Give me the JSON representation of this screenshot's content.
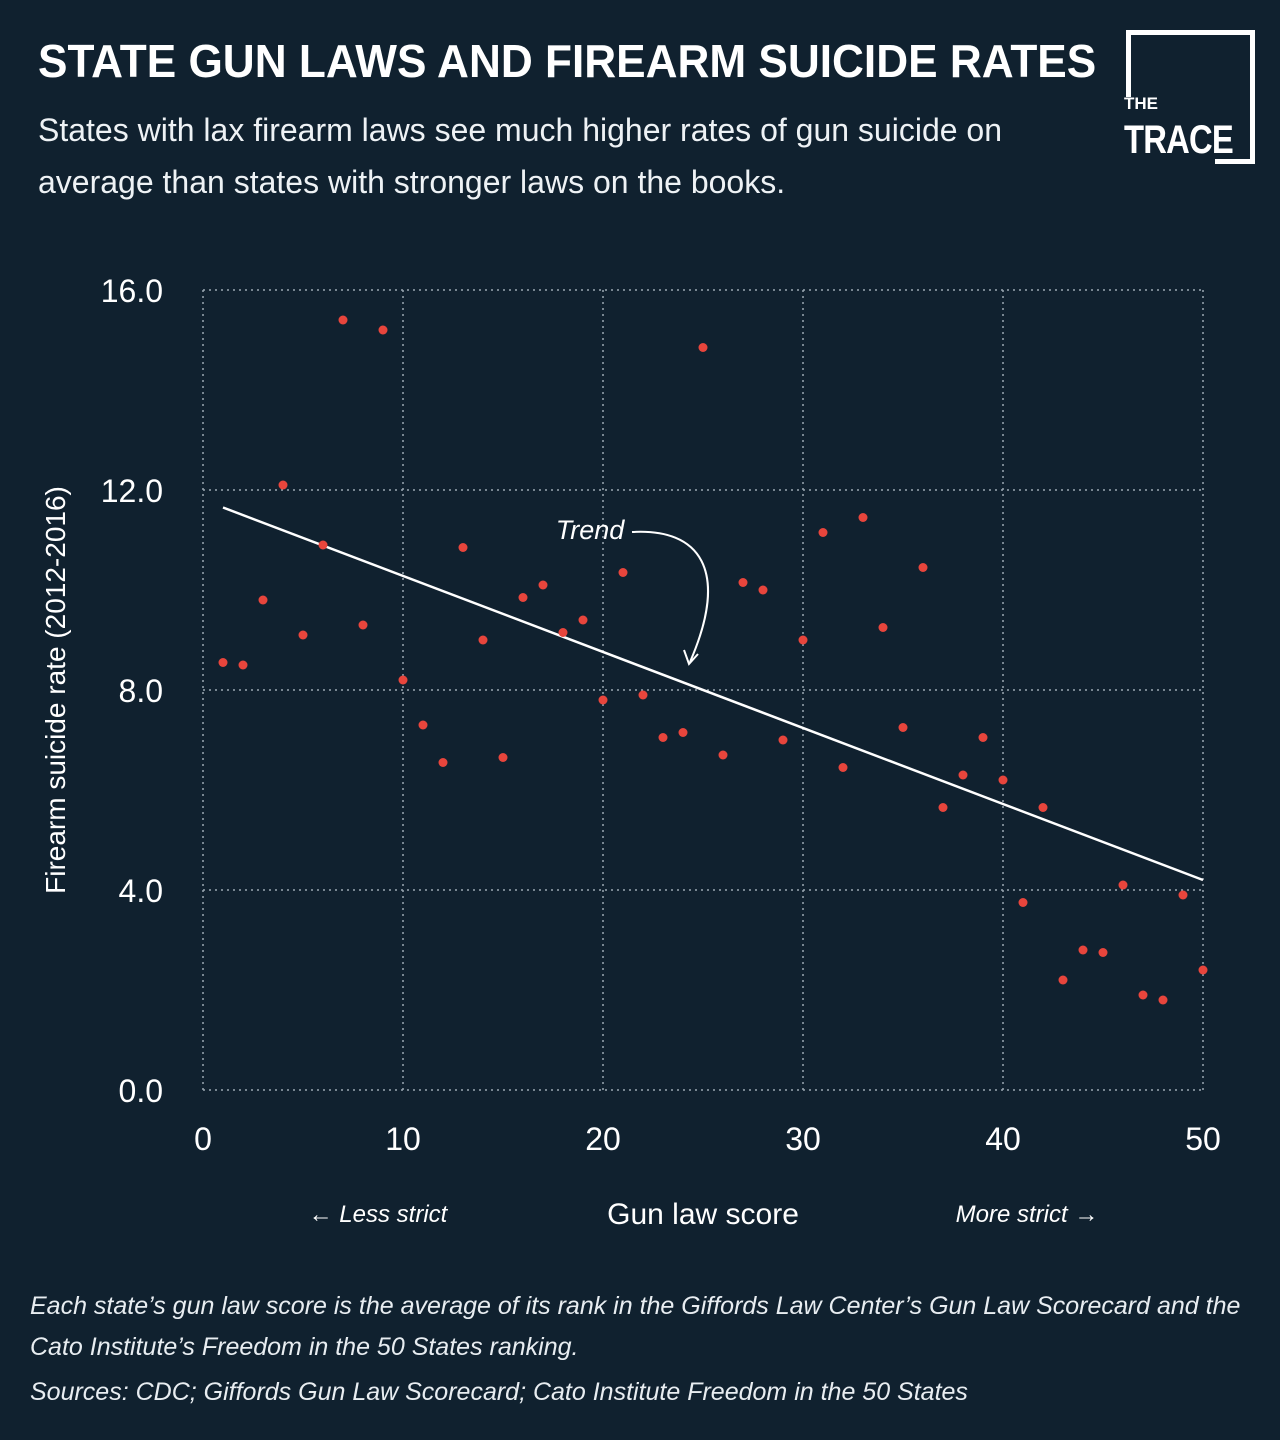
{
  "header": {
    "title": "STATE GUN LAWS AND FIREARM SUICIDE RATES",
    "subtitle": "States with lax firearm laws see much higher rates of gun suicide on average than states with stronger laws on the books."
  },
  "logo": {
    "line1": "THE",
    "line2": "TRACE"
  },
  "chart_data": {
    "type": "scatter",
    "xlabel": "Gun law score",
    "ylabel": "Firearm suicide rate (2012-2016)",
    "xlim": [
      0,
      50
    ],
    "ylim": [
      0,
      16
    ],
    "x_ticks": [
      "0",
      "10",
      "20",
      "30",
      "40",
      "50"
    ],
    "y_ticks": [
      "0.0",
      "4.0",
      "8.0",
      "12.0",
      "16.0"
    ],
    "grid": true,
    "direction_labels": {
      "left": "← Less strict",
      "right": "More strict →"
    },
    "annotation": "Trend",
    "trend_line": {
      "x": [
        1,
        50
      ],
      "y": [
        11.65,
        4.2
      ]
    },
    "point_color": "#e8453c",
    "line_color": "#ffffff",
    "points": [
      {
        "x": 1,
        "y": 8.55
      },
      {
        "x": 2,
        "y": 8.5
      },
      {
        "x": 3,
        "y": 9.8
      },
      {
        "x": 4,
        "y": 12.1
      },
      {
        "x": 5,
        "y": 9.1
      },
      {
        "x": 6,
        "y": 10.9
      },
      {
        "x": 7,
        "y": 15.4
      },
      {
        "x": 8,
        "y": 9.3
      },
      {
        "x": 9,
        "y": 15.2
      },
      {
        "x": 10,
        "y": 8.2
      },
      {
        "x": 11,
        "y": 7.3
      },
      {
        "x": 12,
        "y": 6.55
      },
      {
        "x": 13,
        "y": 10.85
      },
      {
        "x": 14,
        "y": 9.0
      },
      {
        "x": 15,
        "y": 6.65
      },
      {
        "x": 16,
        "y": 9.85
      },
      {
        "x": 17,
        "y": 10.1
      },
      {
        "x": 18,
        "y": 9.15
      },
      {
        "x": 19,
        "y": 9.4
      },
      {
        "x": 20,
        "y": 7.8
      },
      {
        "x": 21,
        "y": 10.35
      },
      {
        "x": 22,
        "y": 7.9
      },
      {
        "x": 23,
        "y": 7.05
      },
      {
        "x": 24,
        "y": 7.15
      },
      {
        "x": 25,
        "y": 14.85
      },
      {
        "x": 26,
        "y": 6.7
      },
      {
        "x": 27,
        "y": 10.15
      },
      {
        "x": 28,
        "y": 10.0
      },
      {
        "x": 29,
        "y": 7.0
      },
      {
        "x": 30,
        "y": 9.0
      },
      {
        "x": 31,
        "y": 11.15
      },
      {
        "x": 32,
        "y": 6.45
      },
      {
        "x": 33,
        "y": 11.45
      },
      {
        "x": 34,
        "y": 9.25
      },
      {
        "x": 35,
        "y": 7.25
      },
      {
        "x": 36,
        "y": 10.45
      },
      {
        "x": 37,
        "y": 5.65
      },
      {
        "x": 38,
        "y": 6.3
      },
      {
        "x": 39,
        "y": 7.05
      },
      {
        "x": 40,
        "y": 6.2
      },
      {
        "x": 41,
        "y": 3.75
      },
      {
        "x": 42,
        "y": 5.65
      },
      {
        "x": 43,
        "y": 2.2
      },
      {
        "x": 44,
        "y": 2.8
      },
      {
        "x": 45,
        "y": 2.75
      },
      {
        "x": 46,
        "y": 4.1
      },
      {
        "x": 47,
        "y": 1.9
      },
      {
        "x": 48,
        "y": 1.8
      },
      {
        "x": 49,
        "y": 3.9
      },
      {
        "x": 50,
        "y": 2.4
      }
    ]
  },
  "footer": {
    "note": "Each state’s gun law score is the average of its rank in the Giffords Law Center’s Gun Law Scorecard and the Cato Institute’s Freedom in the 50 States ranking.",
    "sources": "Sources: CDC; Giffords Gun Law Scorecard; Cato Institute Freedom in the 50 States"
  }
}
